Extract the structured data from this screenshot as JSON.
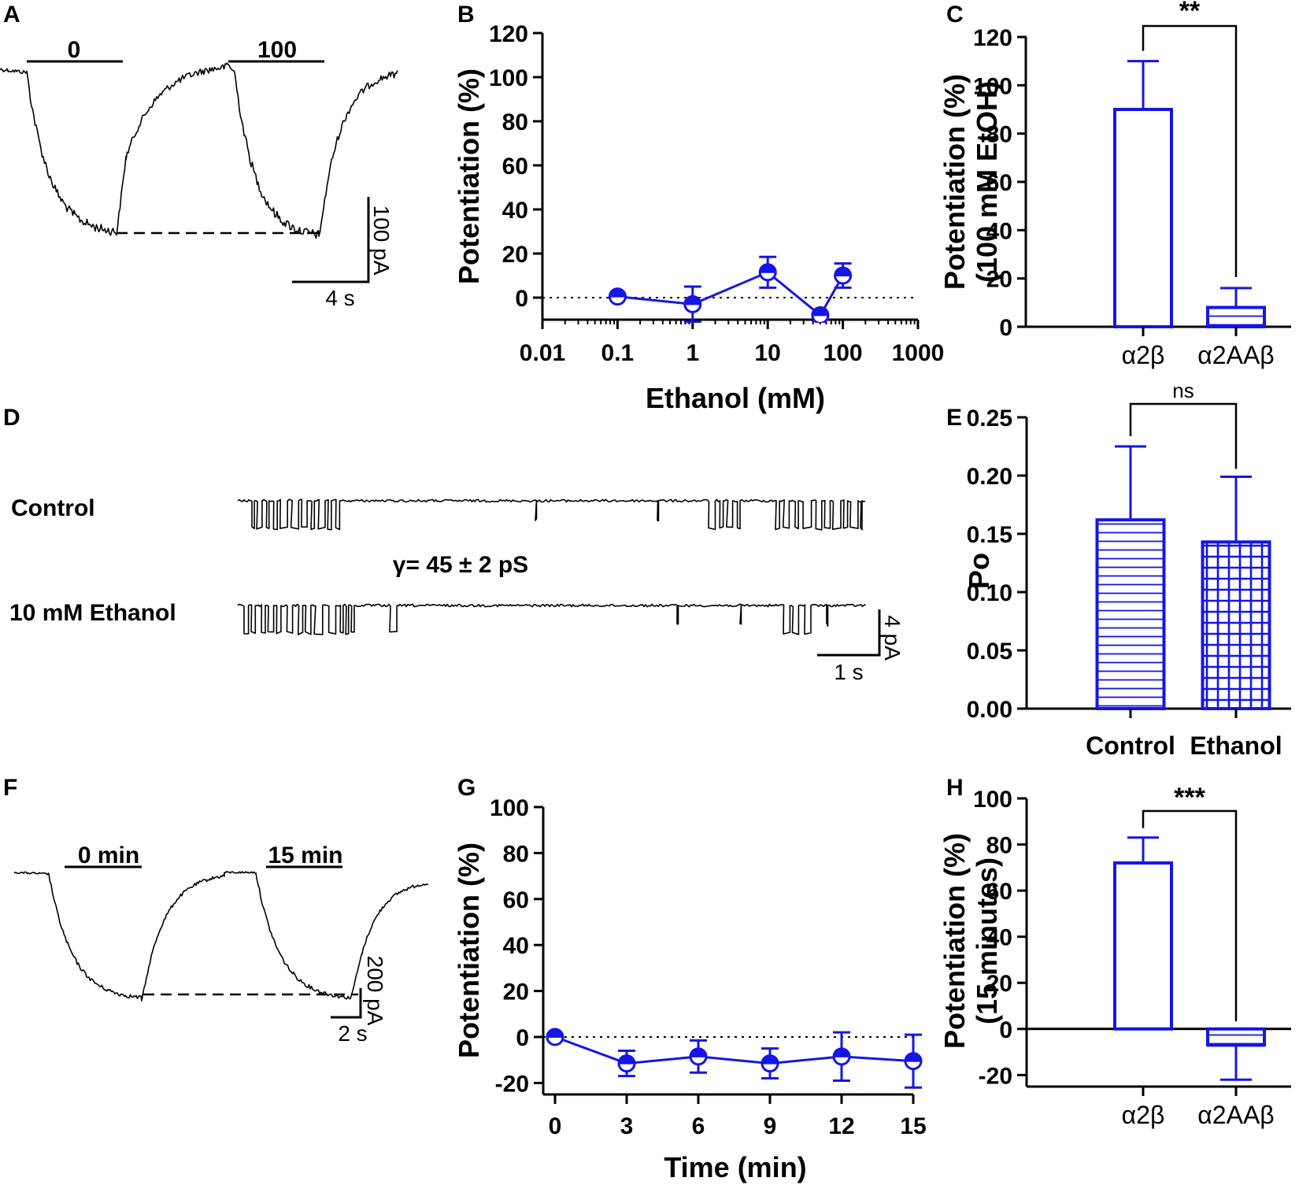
{
  "colors": {
    "series": "#1515e6",
    "trace": "#000000"
  },
  "panels": {
    "A": "A",
    "B": "B",
    "C": "C",
    "D": "D",
    "E": "E",
    "F": "F",
    "G": "G",
    "H": "H"
  },
  "traces": {
    "A": {
      "bar_left": "0",
      "bar_right": "100",
      "scale_y": "100 pA",
      "scale_x": "4 s"
    },
    "D": {
      "row1": "Control",
      "row2": "10 mM Ethanol",
      "gamma": "γ= 45 ± 2 pS",
      "scale_y": "4 pA",
      "scale_x": "1 s"
    },
    "F": {
      "bar_left": "0 min",
      "bar_right": "15 min",
      "scale_y": "200 pA",
      "scale_x": "2 s"
    }
  },
  "chart_data": [
    {
      "id": "B",
      "type": "line",
      "xlabel": "Ethanol (mM)",
      "ylabel": "Potentiation (%)",
      "xscale": "log",
      "xlim": [
        0.01,
        1000
      ],
      "ylim": [
        -10,
        120
      ],
      "xticks": [
        0.01,
        0.1,
        1,
        10,
        100,
        1000
      ],
      "xtick_labels": [
        "0.01",
        "0.1",
        "1",
        "10",
        "100",
        "1000"
      ],
      "yticks": [
        0,
        20,
        40,
        60,
        80,
        100,
        120
      ],
      "ytick_labels": [
        "0",
        "20",
        "40",
        "60",
        "80",
        "100",
        "120"
      ],
      "reference_line_y": 0,
      "series": [
        {
          "name": "EtOH",
          "x": [
            0.1,
            1,
            10,
            50,
            100
          ],
          "y": [
            0.5,
            -3,
            11.5,
            -8,
            10
          ],
          "err": [
            0,
            8,
            7,
            0,
            5.5
          ]
        }
      ]
    },
    {
      "id": "C",
      "type": "bar",
      "ylabel": "Potentiation (%)",
      "ylabel2": "(100 mM EtOH)",
      "categories": [
        "α2β",
        "α2AAβ"
      ],
      "values": [
        90,
        8
      ],
      "err": [
        20,
        8
      ],
      "ylim": [
        0,
        120
      ],
      "yticks": [
        0,
        20,
        40,
        60,
        80,
        100,
        120
      ],
      "ytick_labels": [
        "0",
        "20",
        "40",
        "60",
        "80",
        "100",
        "120"
      ],
      "significance": "**"
    },
    {
      "id": "E",
      "type": "bar",
      "ylabel": "Po",
      "categories": [
        "Control",
        "Ethanol"
      ],
      "values": [
        0.162,
        0.143
      ],
      "err": [
        0.063,
        0.056
      ],
      "ylim": [
        0,
        0.25
      ],
      "yticks": [
        0,
        0.05,
        0.1,
        0.15,
        0.2,
        0.25
      ],
      "ytick_labels": [
        "0.00",
        "0.05",
        "0.10",
        "0.15",
        "0.20",
        "0.25"
      ],
      "significance": "ns"
    },
    {
      "id": "G",
      "type": "line",
      "xlabel": "Time (min)",
      "ylabel": "Potentiation (%)",
      "xlim": [
        0,
        15
      ],
      "ylim": [
        -25,
        100
      ],
      "xticks": [
        0,
        3,
        6,
        9,
        12,
        15
      ],
      "xtick_labels": [
        "0",
        "3",
        "6",
        "9",
        "12",
        "15"
      ],
      "yticks": [
        -20,
        0,
        20,
        40,
        60,
        80,
        100
      ],
      "ytick_labels": [
        "-20",
        "0",
        "20",
        "40",
        "60",
        "80",
        "100"
      ],
      "reference_line_y": 0,
      "series": [
        {
          "name": "Ethanol",
          "x": [
            0,
            3,
            6,
            9,
            12,
            15
          ],
          "y": [
            0,
            -11.5,
            -8.5,
            -11.5,
            -8.5,
            -10.5
          ],
          "err": [
            0,
            5.5,
            7,
            6.5,
            10.5,
            11.5
          ]
        }
      ]
    },
    {
      "id": "H",
      "type": "bar",
      "ylabel": "Potentiation (%)",
      "ylabel2": "(15 minutes)",
      "categories": [
        "α2β",
        "α2AAβ"
      ],
      "values": [
        72,
        -7
      ],
      "err": [
        11,
        15
      ],
      "ylim": [
        -25,
        100
      ],
      "yticks": [
        -20,
        0,
        20,
        40,
        60,
        80,
        100
      ],
      "ytick_labels": [
        "-20",
        "0",
        "20",
        "40",
        "60",
        "80",
        "100"
      ],
      "significance": "***"
    }
  ]
}
